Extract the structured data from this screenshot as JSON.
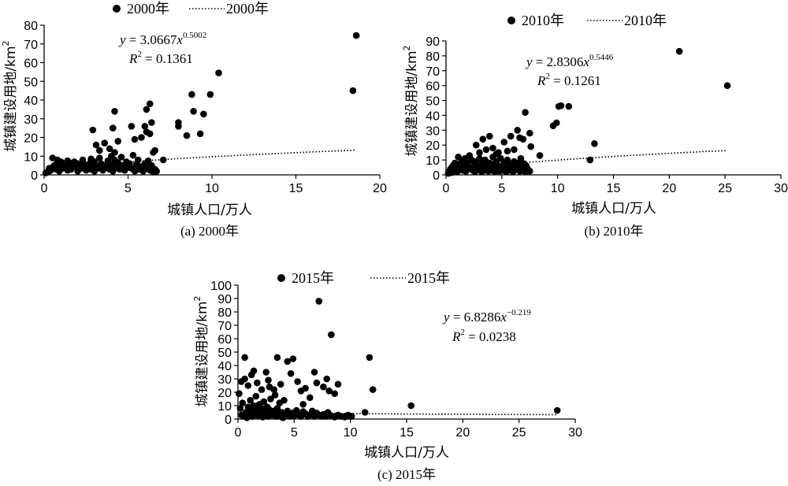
{
  "chart_data": [
    {
      "type": "scatter",
      "caption": "(a) 2000年",
      "xlabel": "城镇人口/万人",
      "ylabel": "城镇建设用地/km²",
      "xlim": [
        0,
        20
      ],
      "ylim": [
        0,
        80
      ],
      "xticks": [
        0,
        5,
        10,
        15,
        20
      ],
      "yticks": [
        0,
        10,
        20,
        30,
        40,
        50,
        60,
        70,
        80
      ],
      "legend_position": "top-left",
      "series": [
        {
          "name": "2000年",
          "kind": "points",
          "x": [
            0.1,
            0.2,
            0.3,
            0.3,
            0.4,
            0.5,
            0.5,
            0.6,
            0.7,
            0.8,
            0.8,
            0.9,
            1.0,
            1.0,
            1.1,
            1.2,
            1.3,
            1.4,
            1.5,
            1.5,
            1.6,
            1.7,
            1.8,
            1.9,
            2.0,
            2.0,
            2.1,
            2.2,
            2.3,
            2.4,
            2.5,
            2.6,
            2.7,
            2.8,
            2.8,
            2.9,
            3.0,
            3.0,
            3.1,
            3.2,
            3.3,
            3.4,
            3.5,
            3.6,
            3.7,
            3.8,
            3.9,
            4.0,
            4.0,
            4.1,
            4.2,
            4.2,
            4.3,
            4.4,
            4.5,
            4.6,
            4.7,
            4.8,
            4.9,
            5.0,
            5.1,
            5.2,
            5.3,
            5.4,
            5.5,
            5.6,
            5.7,
            5.8,
            5.9,
            6.0,
            6.1,
            6.2,
            6.3,
            6.4,
            6.5,
            6.6,
            6.7,
            2.9,
            3.1,
            3.3,
            3.6,
            3.9,
            4.1,
            4.2,
            4.4,
            5.2,
            5.4,
            5.8,
            6.0,
            6.1,
            6.1,
            6.3,
            6.3,
            6.4,
            6.5,
            6.6,
            7.1,
            8.0,
            8.0,
            8.5,
            8.8,
            8.9,
            9.3,
            9.5,
            9.9,
            10.4,
            18.4,
            18.6,
            0.6,
            1.4,
            2.6,
            4.8
          ],
          "y": [
            1.0,
            1.5,
            2.0,
            3.5,
            2.5,
            4.0,
            9.0,
            5.0,
            3.0,
            6.5,
            8.0,
            2.0,
            4.5,
            7.0,
            3.5,
            6.0,
            5.0,
            7.5,
            4.0,
            6.5,
            3.0,
            5.5,
            7.0,
            4.5,
            2.0,
            6.0,
            5.0,
            3.5,
            8.0,
            5.5,
            2.5,
            4.0,
            6.0,
            3.0,
            8.5,
            5.0,
            2.0,
            7.0,
            4.5,
            3.5,
            9.0,
            6.0,
            2.5,
            5.0,
            4.0,
            7.5,
            3.0,
            5.5,
            10.0,
            2.0,
            8.0,
            12.0,
            4.0,
            6.5,
            3.0,
            9.5,
            5.0,
            2.5,
            7.0,
            4.0,
            6.0,
            3.5,
            10.5,
            2.0,
            5.5,
            8.0,
            3.0,
            4.5,
            2.0,
            6.0,
            3.5,
            7.5,
            2.5,
            5.0,
            1.5,
            3.0,
            2.0,
            24.0,
            16.0,
            13.0,
            17.0,
            14.0,
            25.0,
            34.0,
            18.0,
            26.0,
            19.0,
            20.0,
            26.0,
            35.0,
            23.0,
            22.0,
            38.0,
            28.0,
            12.0,
            13.0,
            8.0,
            26.0,
            28.0,
            21.0,
            43.0,
            34.0,
            22.0,
            32.5,
            43.0,
            54.5,
            45.0,
            74.5,
            4.0,
            2.5,
            3.0,
            2.5
          ]
        },
        {
          "name": "2000年",
          "kind": "fit",
          "coef": 3.0667,
          "exp": 0.5002,
          "x_range": [
            0.1,
            18.6
          ]
        }
      ],
      "annotations": [
        "y = 3.0667x0.5002",
        "R2 = 0.1361"
      ]
    },
    {
      "type": "scatter",
      "caption": "(b) 2010年",
      "xlabel": "城镇人口/万人",
      "ylabel": "城镇建设用地/km²",
      "xlim": [
        0,
        30
      ],
      "ylim": [
        0,
        90
      ],
      "xticks": [
        0,
        5,
        10,
        15,
        20,
        25,
        30
      ],
      "yticks": [
        0,
        10,
        20,
        30,
        40,
        50,
        60,
        70,
        80,
        90
      ],
      "legend_position": "top-left",
      "series": [
        {
          "name": "2010年",
          "kind": "points",
          "x": [
            0.2,
            0.3,
            0.4,
            0.5,
            0.6,
            0.7,
            0.8,
            0.9,
            1.0,
            1.1,
            1.2,
            1.3,
            1.4,
            1.5,
            1.6,
            1.7,
            1.8,
            1.9,
            2.0,
            2.1,
            2.2,
            2.3,
            2.4,
            2.5,
            2.6,
            2.7,
            2.8,
            2.9,
            3.0,
            3.1,
            3.2,
            3.3,
            3.4,
            3.5,
            3.6,
            3.7,
            3.8,
            3.9,
            4.0,
            4.1,
            4.2,
            4.3,
            4.4,
            4.5,
            4.6,
            4.7,
            4.8,
            4.9,
            5.0,
            5.1,
            5.2,
            5.3,
            5.4,
            5.5,
            5.6,
            5.7,
            5.8,
            5.9,
            6.0,
            6.1,
            6.2,
            6.3,
            6.4,
            6.5,
            6.6,
            6.7,
            6.8,
            6.9,
            7.0,
            7.1,
            7.2,
            7.3,
            7.4,
            7.5,
            2.7,
            3.0,
            3.3,
            3.6,
            3.9,
            4.2,
            4.5,
            4.7,
            5.2,
            5.5,
            5.8,
            6.1,
            6.4,
            6.6,
            6.9,
            7.1,
            7.5,
            7.6,
            8.4,
            9.6,
            9.9,
            10.1,
            10.3,
            11.0,
            12.9,
            13.3,
            20.9,
            25.2
          ],
          "y": [
            1.0,
            2.5,
            4.0,
            1.5,
            6.0,
            3.0,
            8.0,
            5.0,
            2.0,
            12.0,
            7.0,
            4.0,
            9.5,
            3.0,
            6.0,
            11.0,
            2.5,
            8.0,
            5.0,
            13.0,
            4.5,
            10.0,
            3.0,
            7.0,
            2.0,
            9.0,
            5.5,
            3.5,
            11.0,
            6.0,
            2.0,
            8.5,
            4.0,
            10.0,
            3.0,
            6.5,
            2.5,
            8.0,
            5.0,
            3.0,
            12.0,
            7.0,
            2.0,
            9.0,
            4.5,
            6.0,
            2.5,
            11.0,
            5.0,
            3.0,
            8.0,
            6.5,
            2.0,
            10.0,
            4.0,
            7.0,
            3.0,
            5.5,
            2.0,
            9.0,
            4.0,
            6.5,
            3.5,
            8.0,
            2.5,
            11.0,
            5.0,
            3.0,
            7.5,
            2.0,
            6.0,
            4.0,
            3.0,
            2.5,
            20.0,
            15.0,
            24.0,
            17.0,
            26.0,
            18.0,
            14.0,
            15.0,
            22.0,
            16.0,
            26.0,
            17.0,
            30.0,
            25.0,
            24.0,
            42.0,
            28.0,
            19.0,
            13.0,
            33.0,
            35.0,
            46.0,
            46.5,
            46.0,
            10.0,
            21.0,
            83.0,
            60.0
          ]
        },
        {
          "name": "2010年",
          "kind": "fit",
          "coef": 2.8306,
          "exp": 0.5446,
          "x_range": [
            0.2,
            25.2
          ]
        }
      ],
      "annotations": [
        "y = 2.8306x0.5446",
        "R2 = 0.1261"
      ]
    },
    {
      "type": "scatter",
      "caption": "(c) 2015年",
      "xlabel": "城镇人口/万人",
      "ylabel": "城镇建设用地/km²",
      "xlim": [
        0,
        30
      ],
      "ylim": [
        0,
        100
      ],
      "xticks": [
        0,
        5,
        10,
        15,
        20,
        25,
        30
      ],
      "yticks": [
        0,
        10,
        20,
        30,
        40,
        50,
        60,
        70,
        80,
        90,
        100
      ],
      "legend_position": "top-left",
      "series": [
        {
          "name": "2015年",
          "kind": "points",
          "x": [
            0.1,
            0.2,
            0.3,
            0.4,
            0.5,
            0.6,
            0.7,
            0.8,
            0.9,
            1.0,
            1.1,
            1.2,
            1.3,
            1.4,
            1.5,
            1.6,
            1.7,
            1.8,
            1.9,
            2.0,
            2.1,
            2.2,
            2.3,
            2.4,
            2.5,
            2.6,
            2.7,
            2.8,
            2.9,
            3.0,
            3.1,
            3.2,
            3.3,
            3.4,
            3.5,
            3.6,
            3.7,
            3.8,
            3.9,
            4.0,
            4.2,
            4.4,
            4.6,
            4.8,
            5.0,
            5.2,
            5.4,
            5.6,
            5.8,
            6.0,
            6.2,
            6.4,
            6.6,
            6.8,
            7.0,
            7.2,
            7.4,
            7.6,
            7.8,
            8.0,
            8.3,
            8.6,
            8.9,
            9.2,
            9.5,
            9.8,
            10.1,
            0.6,
            0.9,
            1.2,
            1.7,
            2.1,
            2.5,
            2.8,
            3.2,
            3.5,
            3.8,
            4.4,
            4.7,
            4.9,
            5.3,
            5.6,
            6.0,
            6.4,
            6.8,
            7.0,
            7.2,
            7.6,
            7.9,
            8.1,
            8.3,
            8.6,
            11.3,
            11.7,
            12.0,
            15.4,
            28.4,
            0.3,
            1.4,
            2.7,
            4.1,
            5.8,
            8.9,
            9.6
          ],
          "y": [
            19.0,
            8.0,
            3.0,
            12.0,
            2.0,
            30.0,
            5.0,
            1.0,
            9.0,
            3.0,
            14.0,
            6.0,
            2.0,
            10.0,
            4.0,
            17.0,
            7.0,
            2.5,
            11.0,
            4.0,
            8.0,
            1.5,
            13.0,
            5.0,
            3.0,
            9.0,
            2.0,
            7.0,
            15.0,
            4.0,
            3.0,
            6.0,
            18.0,
            2.0,
            8.0,
            3.5,
            12.0,
            2.0,
            5.0,
            1.0,
            3.5,
            6.0,
            2.0,
            4.5,
            2.5,
            6.5,
            3.0,
            2.0,
            5.5,
            4.0,
            2.0,
            3.0,
            6.0,
            2.0,
            4.5,
            3.0,
            2.0,
            3.5,
            2.0,
            5.0,
            2.5,
            1.5,
            3.0,
            2.0,
            1.5,
            3.0,
            2.0,
            46.0,
            25.0,
            33.0,
            27.0,
            22.0,
            35.0,
            24.0,
            22.0,
            46.0,
            26.0,
            43.0,
            34.0,
            45.0,
            28.0,
            21.0,
            23.0,
            16.0,
            35.0,
            27.0,
            88.0,
            24.0,
            30.0,
            21.0,
            63.0,
            19.0,
            5.0,
            46.0,
            22.0,
            10.0,
            6.5,
            28.0,
            36.0,
            29.0,
            14.0,
            11.0,
            26.0,
            2.0
          ]
        },
        {
          "name": "2015年",
          "kind": "fit",
          "coef": 6.8286,
          "exp": -0.219,
          "x_range": [
            1.0,
            28.4
          ]
        }
      ],
      "annotations": [
        "y = 6.8286x−0.219",
        "R2 = 0.0238"
      ]
    }
  ],
  "text": {
    "a": {
      "legend_points": "2000年",
      "legend_fit": "2000年",
      "eq_coef": "3.0667",
      "eq_exp": "0.5002",
      "r2": "0.1361",
      "caption": "(a) 2000年"
    },
    "b": {
      "legend_points": "2010年",
      "legend_fit": "2010年",
      "eq_coef": "2.8306",
      "eq_exp": "0.5446",
      "r2": "0.1261",
      "caption": "(b) 2010年"
    },
    "c": {
      "legend_points": "2015年",
      "legend_fit": "2015年",
      "eq_coef": "6.8286",
      "eq_exp": "−0.219",
      "r2": "0.0238",
      "caption": "(c) 2015年"
    },
    "xlabel": "城镇人口/万人",
    "ylabel": "城镇建设用地/km",
    "ylabel_sup": "2",
    "eq_y": "y",
    "eq_eq": " = ",
    "eq_x": "x",
    "r2_R": "R",
    "r2_sup": "2",
    "r2_eq": " = "
  }
}
